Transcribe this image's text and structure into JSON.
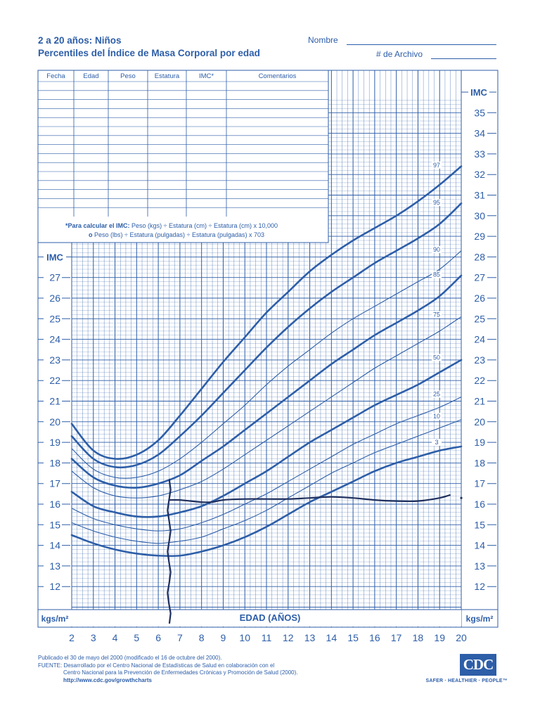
{
  "header": {
    "title_line1": "2 a 20 años: Niños",
    "title_line2": "Percentiles del Índice de Masa Corporal por edad",
    "name_label": "Nombre",
    "record_label": "# de Archivo"
  },
  "record_table": {
    "columns": [
      "Fecha",
      "Edad",
      "Peso",
      "Estatura",
      "IMC*",
      "Comentarios"
    ],
    "formula_line1_bold": "*Para calcular el IMC:",
    "formula_line1_rest": " Peso (kgs) ÷ Estatura (cm) ÷ Estatura (cm) x 10,000",
    "formula_line2_bold": "o",
    "formula_line2_rest": " Peso (lbs) ÷ Estatura (pulgadas) ÷ Estatura (pulgadas) x 703"
  },
  "footer": {
    "line1": "Publicado el 30 de mayo del 2000 (modificado el 16 de octubre del 2000).",
    "line2": "FUENTE: Desarrollado por el Centro Nacional de Estadísticas de Salud en colaboración con el",
    "line3": "Centro Nacional para la Prevención de Enfermedades Crónicas y Promoción de Salud (2000).",
    "url": "http://www.cdc.gov/growthcharts"
  },
  "logo": {
    "text": "CDC",
    "tagline": "SAFER · HEALTHIER · PEOPLE™"
  },
  "colors": {
    "primary": "#2d5ea8",
    "plotted": "#1f2f5e"
  },
  "chart_data": {
    "type": "line",
    "xlabel": "EDAD (AÑOS)",
    "ylabel_left": "IMC",
    "ylabel_right": "IMC",
    "unit_left": "kgs/m²",
    "unit_right": "kgs/m²",
    "xlim": [
      2,
      20
    ],
    "ylim": [
      11,
      36
    ],
    "x_ticks": [
      2,
      3,
      4,
      5,
      6,
      7,
      8,
      9,
      10,
      11,
      12,
      13,
      14,
      15,
      16,
      17,
      18,
      19,
      20
    ],
    "y_ticks_right": [
      12,
      13,
      14,
      15,
      16,
      17,
      18,
      19,
      20,
      21,
      22,
      23,
      24,
      25,
      26,
      27,
      28,
      29,
      30,
      31,
      32,
      33,
      34,
      35
    ],
    "y_ticks_left": [
      12,
      13,
      14,
      15,
      16,
      17,
      18,
      19,
      20,
      21,
      22,
      23,
      24,
      25,
      26,
      27
    ],
    "x": [
      2,
      3,
      4,
      5,
      6,
      7,
      8,
      9,
      10,
      11,
      12,
      13,
      14,
      15,
      16,
      17,
      18,
      19,
      20
    ],
    "series": [
      {
        "name": "97",
        "bold": true,
        "values": [
          19.9,
          18.6,
          18.2,
          18.4,
          19.1,
          20.3,
          21.6,
          22.9,
          24.1,
          25.3,
          26.3,
          27.3,
          28.1,
          28.8,
          29.4,
          30.0,
          30.7,
          31.5,
          32.4
        ]
      },
      {
        "name": "95",
        "bold": true,
        "values": [
          19.3,
          18.2,
          17.8,
          17.9,
          18.4,
          19.3,
          20.3,
          21.4,
          22.5,
          23.6,
          24.6,
          25.5,
          26.3,
          27.0,
          27.7,
          28.3,
          28.9,
          29.6,
          30.6
        ]
      },
      {
        "name": "90",
        "bold": false,
        "values": [
          18.7,
          17.7,
          17.3,
          17.3,
          17.6,
          18.2,
          19.0,
          19.9,
          20.8,
          21.8,
          22.7,
          23.5,
          24.3,
          25.0,
          25.6,
          26.2,
          26.8,
          27.4,
          28.3
        ]
      },
      {
        "name": "85",
        "bold": true,
        "values": [
          18.2,
          17.3,
          16.9,
          16.8,
          17.0,
          17.4,
          18.1,
          18.8,
          19.6,
          20.4,
          21.2,
          22.0,
          22.8,
          23.5,
          24.2,
          24.8,
          25.4,
          26.1,
          27.1
        ]
      },
      {
        "name": "75",
        "bold": false,
        "values": [
          17.6,
          16.8,
          16.4,
          16.3,
          16.4,
          16.7,
          17.1,
          17.7,
          18.4,
          19.1,
          19.8,
          20.5,
          21.2,
          21.9,
          22.6,
          23.2,
          23.8,
          24.4,
          25.1
        ]
      },
      {
        "name": "50",
        "bold": true,
        "values": [
          16.6,
          15.9,
          15.6,
          15.4,
          15.4,
          15.6,
          15.9,
          16.4,
          17.0,
          17.6,
          18.3,
          19.0,
          19.6,
          20.2,
          20.8,
          21.3,
          21.8,
          22.4,
          23.0
        ]
      },
      {
        "name": "25",
        "bold": false,
        "values": [
          15.8,
          15.3,
          15.0,
          14.8,
          14.7,
          14.8,
          15.1,
          15.5,
          16.0,
          16.5,
          17.1,
          17.7,
          18.3,
          18.9,
          19.4,
          19.9,
          20.3,
          20.7,
          21.2
        ]
      },
      {
        "name": "10",
        "bold": false,
        "values": [
          15.1,
          14.7,
          14.4,
          14.2,
          14.1,
          14.2,
          14.4,
          14.8,
          15.2,
          15.7,
          16.3,
          16.9,
          17.5,
          18.0,
          18.5,
          18.9,
          19.3,
          19.7,
          20.1
        ]
      },
      {
        "name": "3",
        "bold": true,
        "values": [
          14.5,
          14.1,
          13.8,
          13.6,
          13.5,
          13.5,
          13.7,
          14.0,
          14.4,
          14.9,
          15.5,
          16.1,
          16.6,
          17.1,
          17.6,
          18.0,
          18.3,
          18.6,
          18.8
        ]
      }
    ],
    "plotted_record": {
      "name": "",
      "x": [
        6.5,
        7.0,
        7.5,
        8.0,
        8.5,
        9.0,
        10.0,
        11.0,
        12.0,
        13.0,
        14.0,
        15.0,
        16.0,
        17.0,
        18.0,
        19.0,
        19.5
      ],
      "values": [
        16.2,
        16.2,
        16.15,
        16.1,
        16.1,
        16.2,
        16.25,
        16.25,
        16.25,
        16.3,
        16.35,
        16.3,
        16.2,
        16.15,
        16.15,
        16.3,
        16.45
      ],
      "vertical_mark_age": 6.5,
      "vertical_mark_range": [
        10.2,
        17.2
      ]
    }
  }
}
